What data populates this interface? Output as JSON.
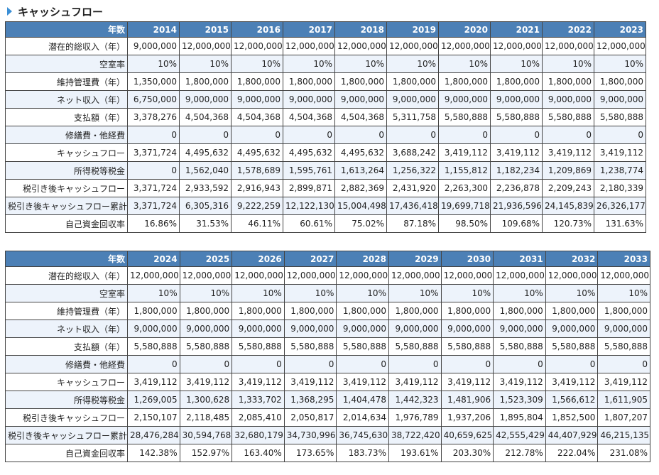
{
  "title": "キャッシュフロー",
  "tables": [
    {
      "header": [
        "年数",
        "2014",
        "2015",
        "2016",
        "2017",
        "2018",
        "2019",
        "2020",
        "2021",
        "2022",
        "2023"
      ],
      "rows": [
        [
          "潜在的総収入（年）",
          "9,000,000",
          "12,000,000",
          "12,000,000",
          "12,000,000",
          "12,000,000",
          "12,000,000",
          "12,000,000",
          "12,000,000",
          "12,000,000",
          "12,000,000"
        ],
        [
          "空室率",
          "10%",
          "10%",
          "10%",
          "10%",
          "10%",
          "10%",
          "10%",
          "10%",
          "10%",
          "10%"
        ],
        [
          "維持管理費（年）",
          "1,350,000",
          "1,800,000",
          "1,800,000",
          "1,800,000",
          "1,800,000",
          "1,800,000",
          "1,800,000",
          "1,800,000",
          "1,800,000",
          "1,800,000"
        ],
        [
          "ネット収入（年）",
          "6,750,000",
          "9,000,000",
          "9,000,000",
          "9,000,000",
          "9,000,000",
          "9,000,000",
          "9,000,000",
          "9,000,000",
          "9,000,000",
          "9,000,000"
        ],
        [
          "支払額（年）",
          "3,378,276",
          "4,504,368",
          "4,504,368",
          "4,504,368",
          "4,504,368",
          "5,311,758",
          "5,580,888",
          "5,580,888",
          "5,580,888",
          "5,580,888"
        ],
        [
          "修繕費・他経費",
          "0",
          "0",
          "0",
          "0",
          "0",
          "0",
          "0",
          "0",
          "0",
          "0"
        ],
        [
          "キャッシュフロー",
          "3,371,724",
          "4,495,632",
          "4,495,632",
          "4,495,632",
          "4,495,632",
          "3,688,242",
          "3,419,112",
          "3,419,112",
          "3,419,112",
          "3,419,112"
        ],
        [
          "所得税等税金",
          "0",
          "1,562,040",
          "1,578,689",
          "1,595,761",
          "1,613,264",
          "1,256,322",
          "1,155,812",
          "1,182,234",
          "1,209,869",
          "1,238,774"
        ],
        [
          "税引き後キャッシュフロー",
          "3,371,724",
          "2,933,592",
          "2,916,943",
          "2,899,871",
          "2,882,369",
          "2,431,920",
          "2,263,300",
          "2,236,878",
          "2,209,243",
          "2,180,339"
        ],
        [
          "税引き後キャッシュフロー累計",
          "3,371,724",
          "6,305,316",
          "9,222,259",
          "12,122,130",
          "15,004,498",
          "17,436,418",
          "19,699,718",
          "21,936,596",
          "24,145,839",
          "26,326,177"
        ],
        [
          "自己資金回収率",
          "16.86%",
          "31.53%",
          "46.11%",
          "60.61%",
          "75.02%",
          "87.18%",
          "98.50%",
          "109.68%",
          "120.73%",
          "131.63%"
        ]
      ]
    },
    {
      "header": [
        "年数",
        "2024",
        "2025",
        "2026",
        "2027",
        "2028",
        "2029",
        "2030",
        "2031",
        "2032",
        "2033"
      ],
      "rows": [
        [
          "潜在的総収入（年）",
          "12,000,000",
          "12,000,000",
          "12,000,000",
          "12,000,000",
          "12,000,000",
          "12,000,000",
          "12,000,000",
          "12,000,000",
          "12,000,000",
          "12,000,000"
        ],
        [
          "空室率",
          "10%",
          "10%",
          "10%",
          "10%",
          "10%",
          "10%",
          "10%",
          "10%",
          "10%",
          "10%"
        ],
        [
          "維持管理費（年）",
          "1,800,000",
          "1,800,000",
          "1,800,000",
          "1,800,000",
          "1,800,000",
          "1,800,000",
          "1,800,000",
          "1,800,000",
          "1,800,000",
          "1,800,000"
        ],
        [
          "ネット収入（年）",
          "9,000,000",
          "9,000,000",
          "9,000,000",
          "9,000,000",
          "9,000,000",
          "9,000,000",
          "9,000,000",
          "9,000,000",
          "9,000,000",
          "9,000,000"
        ],
        [
          "支払額（年）",
          "5,580,888",
          "5,580,888",
          "5,580,888",
          "5,580,888",
          "5,580,888",
          "5,580,888",
          "5,580,888",
          "5,580,888",
          "5,580,888",
          "5,580,888"
        ],
        [
          "修繕費・他経費",
          "0",
          "0",
          "0",
          "0",
          "0",
          "0",
          "0",
          "0",
          "0",
          "0"
        ],
        [
          "キャッシュフロー",
          "3,419,112",
          "3,419,112",
          "3,419,112",
          "3,419,112",
          "3,419,112",
          "3,419,112",
          "3,419,112",
          "3,419,112",
          "3,419,112",
          "3,419,112"
        ],
        [
          "所得税等税金",
          "1,269,005",
          "1,300,628",
          "1,333,702",
          "1,368,295",
          "1,404,478",
          "1,442,323",
          "1,481,906",
          "1,523,309",
          "1,566,612",
          "1,611,905"
        ],
        [
          "税引き後キャッシュフロー",
          "2,150,107",
          "2,118,485",
          "2,085,410",
          "2,050,817",
          "2,014,634",
          "1,976,789",
          "1,937,206",
          "1,895,804",
          "1,852,500",
          "1,807,207"
        ],
        [
          "税引き後キャッシュフロー累計",
          "28,476,284",
          "30,594,768",
          "32,680,179",
          "34,730,996",
          "36,745,630",
          "38,722,420",
          "40,659,625",
          "42,555,429",
          "44,407,929",
          "46,215,135"
        ],
        [
          "自己資金回収率",
          "142.38%",
          "152.97%",
          "163.40%",
          "173.65%",
          "183.73%",
          "193.61%",
          "203.30%",
          "212.78%",
          "222.04%",
          "231.08%"
        ]
      ]
    }
  ]
}
